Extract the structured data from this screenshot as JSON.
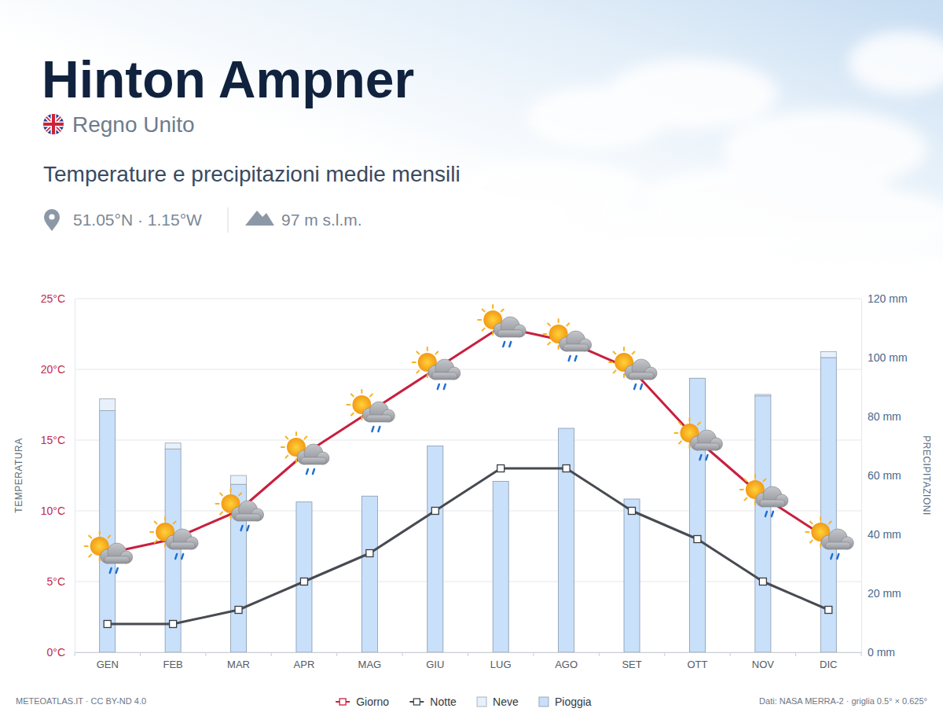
{
  "chart_data": {
    "type": "combo",
    "title": "Hinton Ampner",
    "subtitle": "Regno Unito",
    "description": "Temperature e precipitazioni medie mensili",
    "location": "51.05°N · 1.15°W",
    "elevation": "97 m s.l.m.",
    "credit": "METEOATLAS.IT · CC BY-ND 4.0",
    "source": "Dati: NASA MERRA-2 · griglia 0.5° × 0.625°",
    "ylabel": "TEMPERATURA",
    "y2label": "PRECIPITAZIONI",
    "categories": [
      "GEN",
      "FEB",
      "MAR",
      "APR",
      "MAG",
      "GIU",
      "LUG",
      "AGO",
      "SET",
      "OTT",
      "NOV",
      "DIC"
    ],
    "series": [
      {
        "name": "Giorno",
        "type": "line",
        "color": "#c8203f",
        "marker": "square",
        "values": [
          7,
          8,
          10,
          14,
          17,
          20,
          23,
          22,
          20,
          15,
          11,
          8
        ]
      },
      {
        "name": "Notte",
        "type": "line",
        "color": "#474b51",
        "marker": "square",
        "values": [
          2,
          2,
          3,
          5,
          7,
          10,
          13,
          13,
          10,
          8,
          5,
          3
        ]
      },
      {
        "name": "Neve",
        "type": "bar",
        "axis": "y2",
        "color": "#e6f1fd",
        "values": [
          4,
          2,
          3,
          0,
          0,
          0,
          0,
          0,
          0,
          0,
          0.5,
          2
        ]
      },
      {
        "name": "Pioggia",
        "type": "bar",
        "axis": "y2",
        "color": "#c9e0fb",
        "values": [
          82,
          69,
          57,
          51,
          53,
          70,
          58,
          76,
          52,
          93,
          87,
          100
        ]
      }
    ],
    "stacked": true,
    "ylim": [
      0,
      25
    ],
    "yticks": [
      {
        "value": 0,
        "label": "0°C"
      },
      {
        "value": 5,
        "label": "5°C"
      },
      {
        "value": 10,
        "label": "10°C"
      },
      {
        "value": 15,
        "label": "15°C"
      },
      {
        "value": 20,
        "label": "20°C"
      },
      {
        "value": 25,
        "label": "25°C"
      }
    ],
    "y2lim": [
      0,
      120
    ],
    "y2ticks": [
      {
        "value": 0,
        "label": "0 mm"
      },
      {
        "value": 20,
        "label": "20 mm"
      },
      {
        "value": 40,
        "label": "40 mm"
      },
      {
        "value": 60,
        "label": "60 mm"
      },
      {
        "value": 80,
        "label": "80 mm"
      },
      {
        "value": 100,
        "label": "100 mm"
      },
      {
        "value": 120,
        "label": "120 mm"
      }
    ],
    "grid": true,
    "legend": "bottom"
  }
}
